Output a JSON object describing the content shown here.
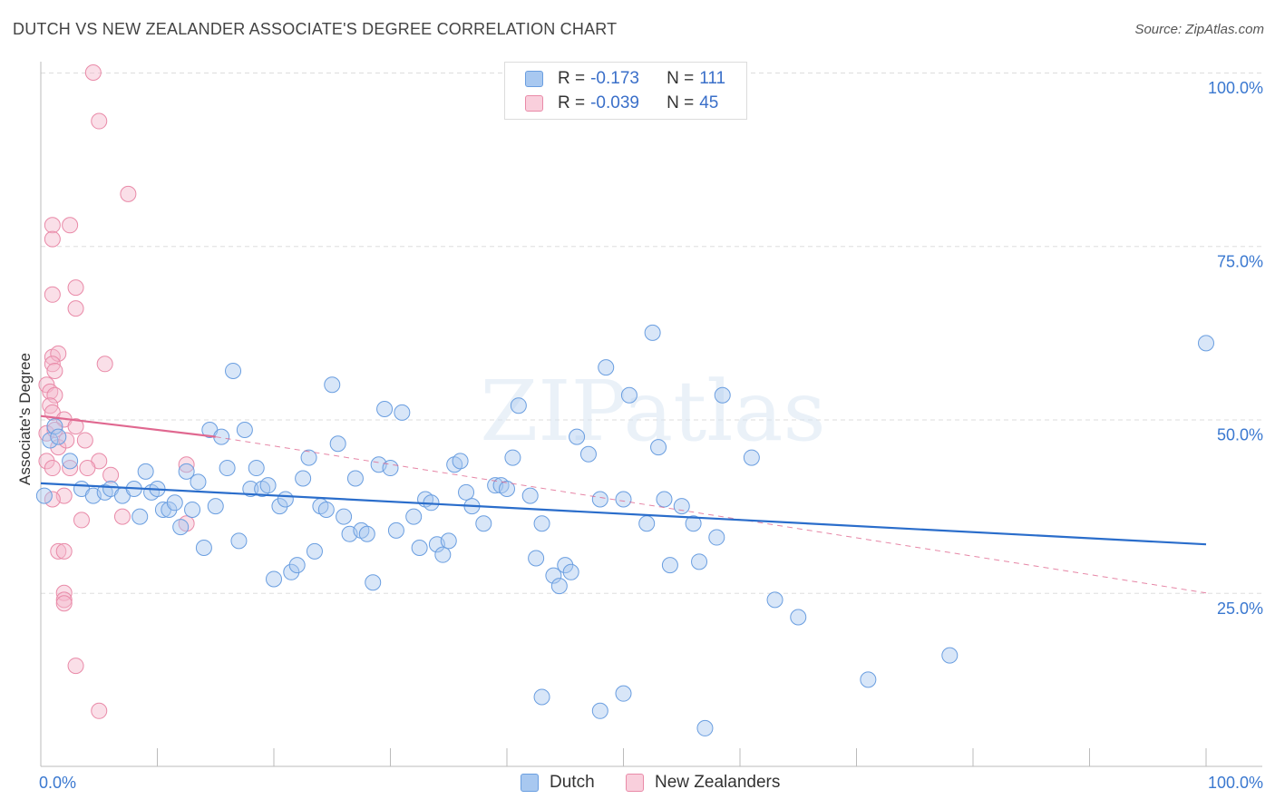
{
  "title": "DUTCH VS NEW ZEALANDER ASSOCIATE'S DEGREE CORRELATION CHART",
  "source": "Source: ZipAtlas.com",
  "watermark": "ZIPatlas",
  "colors": {
    "dutch_fill": "#a8c8f0",
    "dutch_stroke": "#6a9ee0",
    "dutch_line": "#2a6dcb",
    "nz_fill": "#f5b8cb",
    "nz_stroke": "#e98aa8",
    "nz_line": "#e06890",
    "axis_text": "#3a78d0",
    "grid": "#dddddd"
  },
  "legend": {
    "rows": [
      {
        "r_label": "R =",
        "r_value": "-0.173",
        "n_label": "N =",
        "n_value": "111"
      },
      {
        "r_label": "R =",
        "r_value": "-0.039",
        "n_label": "N =",
        "n_value": "45"
      }
    ]
  },
  "bottom_legend": {
    "dutch": "Dutch",
    "nz": "New Zealanders"
  },
  "chart_data": {
    "type": "scatter",
    "xlabel": "",
    "ylabel": "Associate's Degree",
    "xlim": [
      0,
      100
    ],
    "ylim": [
      0,
      100
    ],
    "x_tick_labels": [
      "0.0%",
      "100.0%"
    ],
    "y_tick_labels": [
      "100.0%",
      "75.0%",
      "50.0%",
      "25.0%"
    ],
    "y_ticks": [
      100,
      75,
      50,
      25
    ],
    "series": [
      {
        "name": "Dutch",
        "trend": [
          [
            0,
            40.8
          ],
          [
            100,
            32.0
          ]
        ],
        "points": [
          [
            0.3,
            39
          ],
          [
            0.8,
            47
          ],
          [
            1.2,
            49
          ],
          [
            1.5,
            47.5
          ],
          [
            2.5,
            44
          ],
          [
            3.5,
            40
          ],
          [
            4.5,
            39
          ],
          [
            5.5,
            39.5
          ],
          [
            6,
            40
          ],
          [
            7,
            39
          ],
          [
            8,
            40
          ],
          [
            8.5,
            36
          ],
          [
            9,
            42.5
          ],
          [
            9.5,
            39.5
          ],
          [
            10,
            40
          ],
          [
            10.5,
            37
          ],
          [
            11,
            37
          ],
          [
            11.5,
            38
          ],
          [
            12,
            34.5
          ],
          [
            12.5,
            42.5
          ],
          [
            13,
            37
          ],
          [
            13.5,
            41
          ],
          [
            14,
            31.5
          ],
          [
            14.5,
            48.5
          ],
          [
            15,
            37.5
          ],
          [
            15.5,
            47.5
          ],
          [
            16,
            43
          ],
          [
            16.5,
            57
          ],
          [
            17,
            32.5
          ],
          [
            17.5,
            48.5
          ],
          [
            18,
            40
          ],
          [
            18.5,
            43
          ],
          [
            19,
            40
          ],
          [
            19.5,
            40.5
          ],
          [
            20,
            27
          ],
          [
            20.5,
            37.5
          ],
          [
            21,
            38.5
          ],
          [
            21.5,
            28
          ],
          [
            22,
            29
          ],
          [
            22.5,
            41.5
          ],
          [
            23,
            44.5
          ],
          [
            23.5,
            31
          ],
          [
            24,
            37.5
          ],
          [
            24.5,
            37
          ],
          [
            25,
            55
          ],
          [
            25.5,
            46.5
          ],
          [
            26,
            36
          ],
          [
            26.5,
            33.5
          ],
          [
            27,
            41.5
          ],
          [
            27.5,
            34
          ],
          [
            28,
            33.5
          ],
          [
            28.5,
            26.5
          ],
          [
            29,
            43.5
          ],
          [
            29.5,
            51.5
          ],
          [
            30,
            43
          ],
          [
            30.5,
            34
          ],
          [
            31,
            51
          ],
          [
            32,
            36
          ],
          [
            32.5,
            31.5
          ],
          [
            33,
            38.5
          ],
          [
            33.5,
            38
          ],
          [
            34,
            32
          ],
          [
            34.5,
            30.5
          ],
          [
            35,
            32.5
          ],
          [
            35.5,
            43.5
          ],
          [
            36,
            44
          ],
          [
            36.5,
            39.5
          ],
          [
            37,
            37.5
          ],
          [
            38,
            35
          ],
          [
            39,
            40.5
          ],
          [
            39.5,
            40.5
          ],
          [
            40,
            40
          ],
          [
            40.5,
            44.5
          ],
          [
            41,
            52
          ],
          [
            42,
            39
          ],
          [
            42.5,
            30
          ],
          [
            43,
            35
          ],
          [
            44,
            27.5
          ],
          [
            44.5,
            26
          ],
          [
            45,
            29
          ],
          [
            45.5,
            28
          ],
          [
            46,
            47.5
          ],
          [
            47,
            45
          ],
          [
            48,
            38.5
          ],
          [
            48.5,
            57.5
          ],
          [
            50,
            38.5
          ],
          [
            50.5,
            53.5
          ],
          [
            52,
            35
          ],
          [
            52.5,
            62.5
          ],
          [
            53,
            46
          ],
          [
            53.5,
            38.5
          ],
          [
            54,
            29
          ],
          [
            55,
            37.5
          ],
          [
            56,
            35
          ],
          [
            56.5,
            29.5
          ],
          [
            57,
            5.5
          ],
          [
            58,
            33
          ],
          [
            58.5,
            53.5
          ],
          [
            61,
            44.5
          ],
          [
            63,
            24
          ],
          [
            65,
            21.5
          ],
          [
            71,
            12.5
          ],
          [
            78,
            16
          ],
          [
            43,
            10
          ],
          [
            50,
            10.5
          ],
          [
            48,
            8
          ],
          [
            100,
            61
          ]
        ]
      },
      {
        "name": "New Zealanders",
        "trend_solid": [
          [
            0,
            50.5
          ],
          [
            15,
            47.5
          ]
        ],
        "trend_dashed": [
          [
            15,
            47.5
          ],
          [
            100,
            25
          ]
        ],
        "points": [
          [
            4.5,
            100
          ],
          [
            5,
            93
          ],
          [
            7.5,
            82.5
          ],
          [
            1,
            78
          ],
          [
            2.5,
            78
          ],
          [
            1,
            76
          ],
          [
            1,
            68
          ],
          [
            3,
            69
          ],
          [
            3,
            66
          ],
          [
            1,
            59
          ],
          [
            1.5,
            59.5
          ],
          [
            5.5,
            58
          ],
          [
            1,
            58
          ],
          [
            1.2,
            57
          ],
          [
            0.5,
            55
          ],
          [
            0.8,
            54
          ],
          [
            1.2,
            53.5
          ],
          [
            0.8,
            52
          ],
          [
            1,
            51
          ],
          [
            2,
            50
          ],
          [
            3,
            49
          ],
          [
            0.5,
            48
          ],
          [
            1.5,
            46
          ],
          [
            0.5,
            44
          ],
          [
            5,
            44
          ],
          [
            2.5,
            43
          ],
          [
            4,
            43
          ],
          [
            6,
            42
          ],
          [
            12.5,
            43.5
          ],
          [
            1,
            43
          ],
          [
            2,
            39
          ],
          [
            1,
            38.5
          ],
          [
            3.5,
            35.5
          ],
          [
            12.5,
            35
          ],
          [
            7,
            36
          ],
          [
            1.5,
            31
          ],
          [
            2,
            31
          ],
          [
            2,
            25
          ],
          [
            2,
            24
          ],
          [
            2,
            23.5
          ],
          [
            3,
            14.5
          ],
          [
            5,
            8
          ],
          [
            1.2,
            48.5
          ],
          [
            2.2,
            47
          ],
          [
            3.8,
            47
          ]
        ]
      }
    ]
  }
}
